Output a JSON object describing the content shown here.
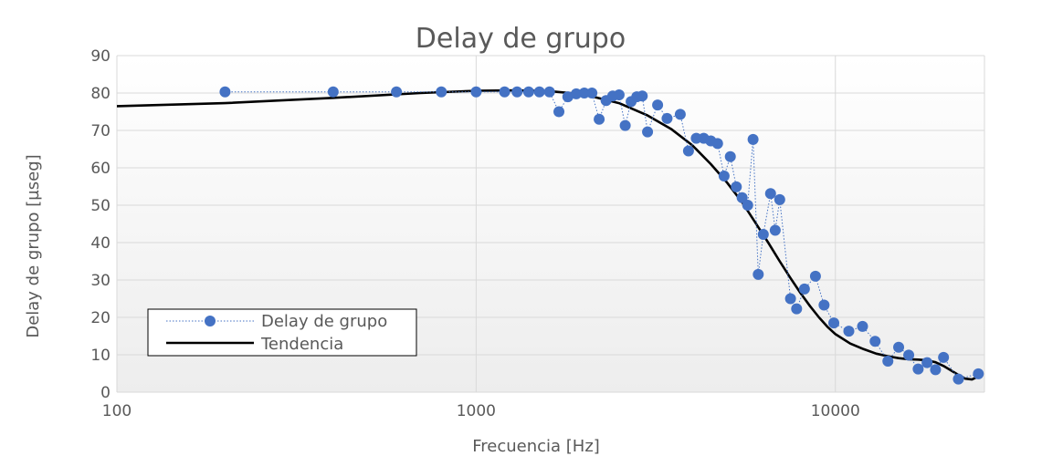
{
  "chart_data": {
    "type": "scatter",
    "title": "Delay de grupo",
    "xlabel": "Frecuencia [Hz]",
    "ylabel": "Delay de grupo [µseg]",
    "x_scale": "log",
    "xlim": [
      100,
      26000
    ],
    "ylim": [
      0,
      90
    ],
    "x_ticks": [
      100,
      1000,
      10000
    ],
    "x_tick_labels": [
      "100",
      "1000",
      "10000"
    ],
    "y_ticks": [
      0,
      10,
      20,
      30,
      40,
      50,
      60,
      70,
      80,
      90
    ],
    "y_tick_labels": [
      "0",
      "10",
      "20",
      "30",
      "40",
      "50",
      "60",
      "70",
      "80",
      "90"
    ],
    "grid": true,
    "background": "gradient white to light gray",
    "legend_position": "bottom-left",
    "series": [
      {
        "name": "Delay de grupo",
        "style": "markers with dotted line",
        "color": "#4472C4",
        "x": [
          200,
          400,
          600,
          800,
          1000,
          1200,
          1300,
          1400,
          1500,
          1600,
          1700,
          1800,
          1900,
          2000,
          2100,
          2200,
          2300,
          2400,
          2500,
          2600,
          2700,
          2800,
          2900,
          3000,
          3200,
          3400,
          3700,
          3900,
          4100,
          4300,
          4500,
          4700,
          4900,
          5100,
          5300,
          5500,
          5700,
          5900,
          6100,
          6300,
          6600,
          6800,
          7000,
          7500,
          7800,
          8200,
          8800,
          9300,
          9900,
          10900,
          11900,
          12900,
          14000,
          15000,
          16000,
          17000,
          18000,
          19000,
          20000,
          22000,
          25000
        ],
        "y": [
          80.3,
          80.3,
          80.3,
          80.3,
          80.3,
          80.3,
          80.3,
          80.3,
          80.3,
          80.3,
          75,
          79,
          79.8,
          80,
          80,
          73,
          78,
          79.2,
          79.5,
          71.3,
          77.7,
          79,
          79.2,
          69.6,
          76.8,
          73.2,
          74.3,
          64.5,
          67.9,
          67.9,
          67.2,
          66.5,
          57.8,
          63,
          54.9,
          52,
          50,
          67.6,
          31.5,
          42.2,
          53.1,
          43.3,
          51.5,
          25,
          22.3,
          27.6,
          31,
          23.3,
          18.5,
          16.3,
          17.6,
          13.6,
          8.3,
          12,
          9.9,
          6.2,
          7.9,
          6,
          9.3,
          3.5,
          4.9
        ]
      },
      {
        "name": "Tendencia",
        "style": "solid line",
        "color": "#000000",
        "x": [
          100,
          200,
          400,
          700,
          1000,
          1300,
          1600,
          2000,
          2500,
          3000,
          3500,
          4000,
          4500,
          5000,
          5500,
          6000,
          6500,
          7000,
          7500,
          8000,
          8500,
          9000,
          9500,
          10000,
          11000,
          12000,
          13000,
          14000,
          15000,
          16000,
          17000,
          18000,
          19000,
          20000,
          21000,
          22000,
          23000,
          24000,
          25000
        ],
        "y": [
          76.5,
          77.3,
          78.7,
          80.0,
          80.6,
          80.7,
          80.5,
          79.6,
          77.3,
          74.0,
          70.3,
          66.0,
          61.0,
          56.0,
          50.8,
          45.2,
          40.0,
          35.0,
          30.5,
          26.5,
          23.0,
          20.0,
          17.5,
          15.5,
          13.0,
          11.5,
          10.3,
          9.6,
          9.1,
          8.8,
          8.7,
          8.5,
          8.0,
          7.0,
          5.8,
          4.6,
          3.6,
          3.4,
          4.2
        ]
      }
    ]
  }
}
